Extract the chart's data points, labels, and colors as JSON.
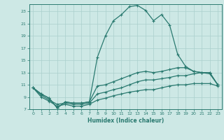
{
  "xlabel": "Humidex (Indice chaleur)",
  "bg_color": "#cde8e5",
  "grid_color": "#aacfcc",
  "line_color": "#2a7a70",
  "xlim": [
    -0.5,
    23.5
  ],
  "ylim": [
    7,
    24.2
  ],
  "xticks": [
    0,
    1,
    2,
    3,
    4,
    5,
    6,
    7,
    8,
    9,
    10,
    11,
    12,
    13,
    14,
    15,
    16,
    17,
    18,
    19,
    20,
    21,
    22,
    23
  ],
  "yticks": [
    7,
    9,
    11,
    13,
    15,
    17,
    19,
    21,
    23
  ],
  "line1_x": [
    0,
    1,
    2,
    3,
    4,
    5,
    6,
    7,
    8,
    9,
    10,
    11,
    12,
    13,
    14,
    15,
    16,
    17,
    18,
    19,
    20,
    21,
    22,
    23
  ],
  "line1_y": [
    10.5,
    9.5,
    8.8,
    7.2,
    8.2,
    8.0,
    8.0,
    8.2,
    15.5,
    19.0,
    21.5,
    22.5,
    23.8,
    24.0,
    23.2,
    21.5,
    22.5,
    20.8,
    16.0,
    14.0,
    13.2,
    13.0,
    13.0,
    11.0
  ],
  "line2_x": [
    0,
    1,
    2,
    3,
    4,
    5,
    6,
    7,
    8,
    9,
    10,
    11,
    12,
    13,
    14,
    15,
    16,
    17,
    18,
    19,
    20,
    21,
    22,
    23
  ],
  "line2_y": [
    10.5,
    9.5,
    8.8,
    7.2,
    8.2,
    8.0,
    8.0,
    8.2,
    10.8,
    11.0,
    11.5,
    12.0,
    12.5,
    13.0,
    13.2,
    13.0,
    13.2,
    13.5,
    13.8,
    13.8,
    13.2,
    13.0,
    13.0,
    11.0
  ],
  "line3_x": [
    0,
    1,
    2,
    3,
    4,
    5,
    6,
    7,
    8,
    9,
    10,
    11,
    12,
    13,
    14,
    15,
    16,
    17,
    18,
    19,
    20,
    21,
    22,
    23
  ],
  "line3_y": [
    10.5,
    9.3,
    8.5,
    7.8,
    8.0,
    7.8,
    7.8,
    8.0,
    9.5,
    9.8,
    10.2,
    10.5,
    11.0,
    11.5,
    11.8,
    11.8,
    12.0,
    12.2,
    12.5,
    12.5,
    12.8,
    13.0,
    12.8,
    11.0
  ],
  "line4_x": [
    0,
    1,
    2,
    3,
    4,
    5,
    6,
    7,
    8,
    9,
    10,
    11,
    12,
    13,
    14,
    15,
    16,
    17,
    18,
    19,
    20,
    21,
    22,
    23
  ],
  "line4_y": [
    10.5,
    9.0,
    8.3,
    7.5,
    7.8,
    7.5,
    7.5,
    7.8,
    8.5,
    8.8,
    9.2,
    9.5,
    9.8,
    10.0,
    10.2,
    10.2,
    10.5,
    10.8,
    11.0,
    11.0,
    11.2,
    11.2,
    11.2,
    10.8
  ]
}
